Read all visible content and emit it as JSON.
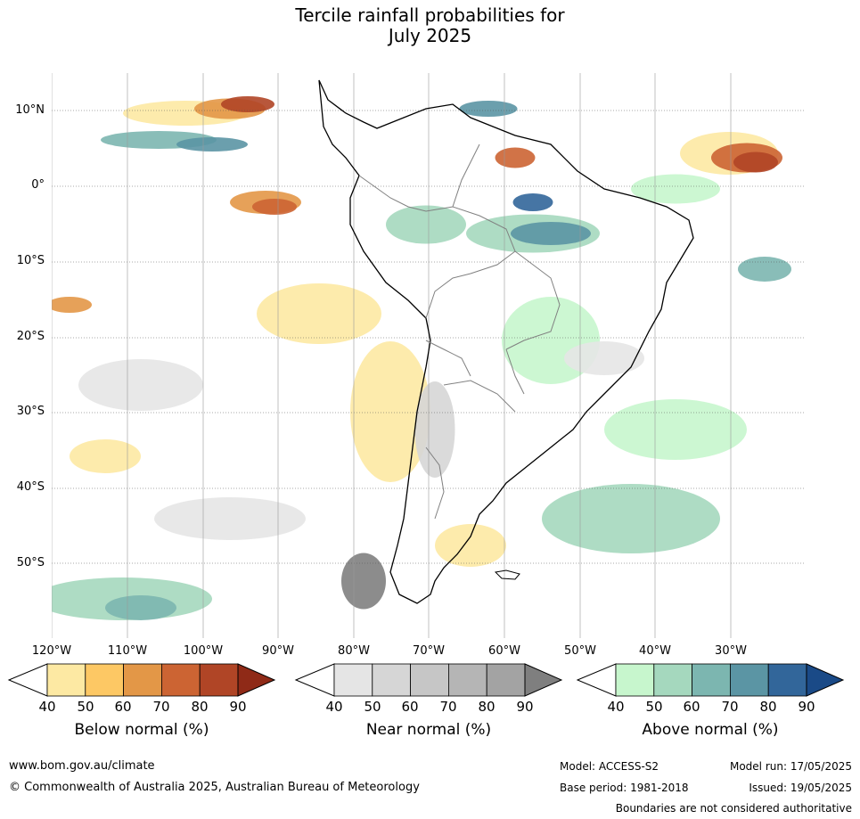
{
  "title_line1": "Tercile rainfall probabilities for",
  "title_line2": "July 2025",
  "lat_labels": [
    "10°N",
    "0°",
    "10°S",
    "20°S",
    "30°S",
    "40°S",
    "50°S"
  ],
  "lon_labels": [
    "120°W",
    "110°W",
    "100°W",
    "90°W",
    "80°W",
    "70°W",
    "60°W",
    "50°W",
    "40°W",
    "30°W"
  ],
  "colorbars": [
    {
      "title": "Below normal (%)",
      "ticks": [
        "40",
        "50",
        "60",
        "70",
        "80",
        "90"
      ],
      "colors": [
        "#fde9a3",
        "#fdc864",
        "#e39747",
        "#cc6433",
        "#b04526",
        "#8f2a17"
      ]
    },
    {
      "title": "Near normal (%)",
      "ticks": [
        "40",
        "50",
        "60",
        "70",
        "80",
        "90"
      ],
      "colors": [
        "#e5e5e5",
        "#d6d6d6",
        "#c6c6c6",
        "#b5b5b5",
        "#a3a3a3",
        "#7f7f7f"
      ]
    },
    {
      "title": "Above normal (%)",
      "ticks": [
        "40",
        "50",
        "60",
        "70",
        "80",
        "90"
      ],
      "colors": [
        "#c7f6cd",
        "#a5d8be",
        "#7cb6b0",
        "#5b95a4",
        "#32669a",
        "#1a4a87"
      ]
    }
  ],
  "footer": {
    "url": "www.bom.gov.au/climate",
    "copyright": "© Commonwealth of Australia 2025, Australian Bureau of Meteorology",
    "model": "Model: ACCESS-S2",
    "base_period": "Base period: 1981-2018",
    "model_run": "Model run: 17/05/2025",
    "issued": "Issued: 19/05/2025",
    "disclaimer": "Boundaries are not considered authoritative"
  }
}
